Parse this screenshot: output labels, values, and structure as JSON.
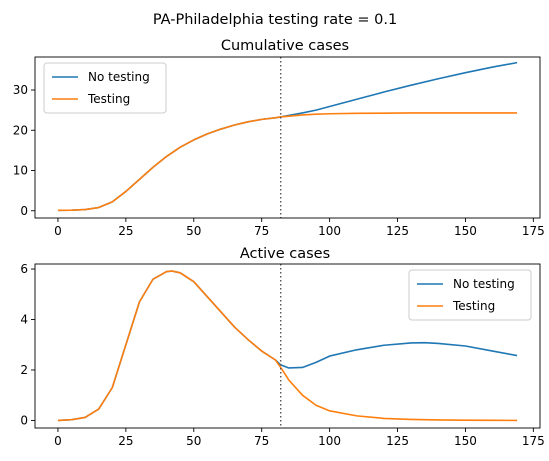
{
  "suptitle": "PA-Philadelphia testing rate = 0.1",
  "colors": {
    "no_testing": "#1f77b4",
    "testing": "#ff7f0e",
    "vline": "#555555"
  },
  "chart_data": [
    {
      "type": "line",
      "title": "Cumulative cases",
      "xlabel": "",
      "ylabel": "",
      "xlim": [
        -8.45,
        177.45
      ],
      "ylim": [
        -1.8,
        38.2
      ],
      "xticks": [
        0,
        25,
        50,
        75,
        100,
        125,
        150,
        175
      ],
      "yticks": [
        0,
        10,
        20,
        30
      ],
      "grid": false,
      "legend_position": "upper left",
      "vline_x": 82,
      "x": [
        0,
        5,
        10,
        15,
        20,
        25,
        30,
        35,
        40,
        45,
        50,
        55,
        60,
        65,
        70,
        75,
        80,
        82,
        85,
        90,
        95,
        100,
        110,
        120,
        130,
        140,
        150,
        160,
        169
      ],
      "series": [
        {
          "name": "No testing",
          "color": "#1f77b4",
          "values": [
            0.1,
            0.15,
            0.3,
            0.8,
            2.2,
            4.8,
            7.8,
            10.8,
            13.5,
            15.8,
            17.6,
            19.1,
            20.3,
            21.3,
            22.1,
            22.7,
            23.1,
            23.3,
            23.7,
            24.3,
            25.0,
            25.9,
            27.7,
            29.5,
            31.2,
            32.8,
            34.3,
            35.7,
            36.8
          ]
        },
        {
          "name": "Testing",
          "color": "#ff7f0e",
          "values": [
            0.1,
            0.15,
            0.3,
            0.8,
            2.2,
            4.8,
            7.8,
            10.8,
            13.5,
            15.8,
            17.6,
            19.1,
            20.3,
            21.3,
            22.1,
            22.7,
            23.1,
            23.3,
            23.5,
            23.8,
            24.0,
            24.1,
            24.2,
            24.25,
            24.3,
            24.3,
            24.3,
            24.3,
            24.3
          ]
        }
      ]
    },
    {
      "type": "line",
      "title": "Active cases",
      "xlabel": "",
      "ylabel": "",
      "xlim": [
        -8.45,
        177.45
      ],
      "ylim": [
        -0.3,
        6.2
      ],
      "xticks": [
        0,
        25,
        50,
        75,
        100,
        125,
        150,
        175
      ],
      "yticks": [
        0,
        2,
        4,
        6
      ],
      "grid": false,
      "legend_position": "upper right",
      "vline_x": 82,
      "x": [
        0,
        5,
        10,
        15,
        20,
        25,
        30,
        35,
        40,
        42,
        45,
        50,
        55,
        60,
        65,
        70,
        75,
        80,
        82,
        85,
        90,
        95,
        100,
        110,
        120,
        130,
        135,
        140,
        150,
        160,
        169
      ],
      "series": [
        {
          "name": "No testing",
          "color": "#1f77b4",
          "values": [
            0.0,
            0.03,
            0.12,
            0.45,
            1.3,
            3.0,
            4.7,
            5.6,
            5.9,
            5.92,
            5.85,
            5.5,
            4.9,
            4.3,
            3.7,
            3.2,
            2.75,
            2.4,
            2.2,
            2.08,
            2.1,
            2.3,
            2.55,
            2.8,
            2.98,
            3.07,
            3.08,
            3.05,
            2.95,
            2.75,
            2.57
          ]
        },
        {
          "name": "Testing",
          "color": "#ff7f0e",
          "values": [
            0.0,
            0.03,
            0.12,
            0.45,
            1.3,
            3.0,
            4.7,
            5.6,
            5.9,
            5.92,
            5.85,
            5.5,
            4.9,
            4.3,
            3.7,
            3.2,
            2.75,
            2.4,
            2.1,
            1.6,
            1.0,
            0.6,
            0.38,
            0.18,
            0.08,
            0.04,
            0.03,
            0.02,
            0.01,
            0.005,
            0.0
          ]
        }
      ]
    }
  ]
}
